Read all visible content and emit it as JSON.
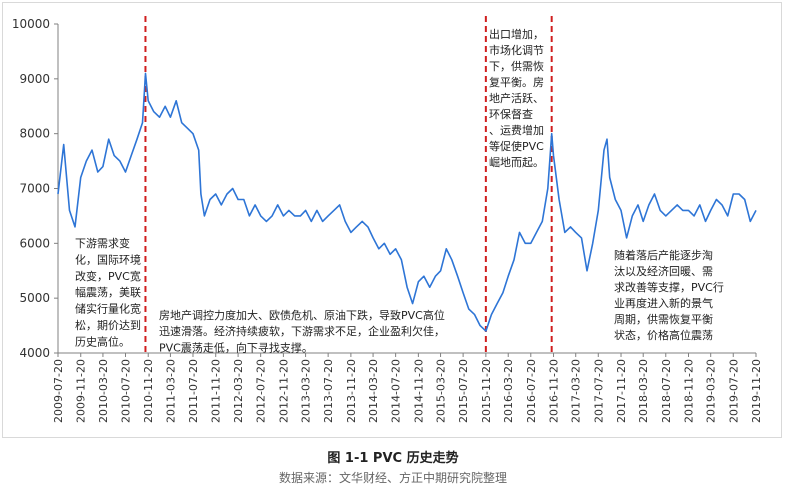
{
  "figure": {
    "caption": "图 1-1 PVC 历史走势",
    "source": "数据来源：文华财经、方正中期研究院整理"
  },
  "chart_data": {
    "type": "line",
    "title": "",
    "xlabel": "",
    "ylabel": "",
    "ylim": [
      4000,
      10000
    ],
    "yticks": [
      4000,
      5000,
      6000,
      7000,
      8000,
      9000,
      10000
    ],
    "grid": false,
    "legend": "none",
    "line_color": "#2e75d6",
    "marker_color": "#d01f1f",
    "x_tick_labels": [
      "2009-07-20",
      "2009-11-20",
      "2010-03-20",
      "2010-07-20",
      "2010-11-20",
      "2011-03-20",
      "2011-07-20",
      "2011-11-20",
      "2012-03-20",
      "2012-07-20",
      "2012-11-20",
      "2013-03-20",
      "2013-07-20",
      "2013-11-20",
      "2014-03-20",
      "2014-07-20",
      "2014-11-20",
      "2015-03-20",
      "2015-07-20",
      "2015-11-20",
      "2016-03-20",
      "2016-07-20",
      "2016-11-20",
      "2017-03-20",
      "2017-07-20",
      "2017-11-20",
      "2018-03-20",
      "2018-07-20",
      "2018-11-20",
      "2019-03-20",
      "2019-07-20",
      "2019-11-20"
    ],
    "series": [
      {
        "x": [
          "2009-07-20",
          "2009-08-20",
          "2009-09-20",
          "2009-10-20",
          "2009-11-20",
          "2009-12-20",
          "2010-01-20",
          "2010-02-20",
          "2010-03-20",
          "2010-04-20",
          "2010-05-20",
          "2010-06-20",
          "2010-07-20",
          "2010-08-20",
          "2010-09-20",
          "2010-10-20",
          "2010-11-05",
          "2010-11-20",
          "2010-12-20",
          "2011-01-20",
          "2011-02-20",
          "2011-03-20",
          "2011-04-20",
          "2011-05-20",
          "2011-06-20",
          "2011-07-20",
          "2011-08-20",
          "2011-09-01",
          "2011-09-20",
          "2011-10-20",
          "2011-11-20",
          "2011-12-20",
          "2012-01-20",
          "2012-02-20",
          "2012-03-20",
          "2012-04-20",
          "2012-05-20",
          "2012-06-20",
          "2012-07-20",
          "2012-08-20",
          "2012-09-20",
          "2012-10-20",
          "2012-11-20",
          "2012-12-20",
          "2013-01-20",
          "2013-02-20",
          "2013-03-20",
          "2013-04-20",
          "2013-05-20",
          "2013-06-20",
          "2013-07-20",
          "2013-08-20",
          "2013-09-20",
          "2013-10-20",
          "2013-11-20",
          "2013-12-20",
          "2014-01-20",
          "2014-02-20",
          "2014-03-20",
          "2014-04-20",
          "2014-05-20",
          "2014-06-20",
          "2014-07-20",
          "2014-08-20",
          "2014-09-20",
          "2014-10-20",
          "2014-11-20",
          "2014-12-20",
          "2015-01-20",
          "2015-02-20",
          "2015-03-20",
          "2015-04-20",
          "2015-05-20",
          "2015-06-20",
          "2015-07-20",
          "2015-08-20",
          "2015-09-20",
          "2015-10-20",
          "2015-11-20",
          "2015-12-20",
          "2016-01-20",
          "2016-02-20",
          "2016-03-20",
          "2016-04-20",
          "2016-05-20",
          "2016-06-20",
          "2016-07-20",
          "2016-08-20",
          "2016-09-20",
          "2016-10-20",
          "2016-11-10",
          "2016-11-20",
          "2016-12-20",
          "2017-01-20",
          "2017-02-20",
          "2017-03-20",
          "2017-04-20",
          "2017-05-20",
          "2017-06-20",
          "2017-07-20",
          "2017-08-20",
          "2017-09-05",
          "2017-09-20",
          "2017-10-20",
          "2017-11-20",
          "2017-12-20",
          "2018-01-20",
          "2018-02-20",
          "2018-03-20",
          "2018-04-20",
          "2018-05-20",
          "2018-06-20",
          "2018-07-20",
          "2018-08-20",
          "2018-09-20",
          "2018-10-20",
          "2018-11-20",
          "2018-12-20",
          "2019-01-20",
          "2019-02-20",
          "2019-03-20",
          "2019-04-20",
          "2019-05-20",
          "2019-06-20",
          "2019-07-20",
          "2019-08-20",
          "2019-09-20",
          "2019-10-20",
          "2019-11-20"
        ],
        "values": [
          6900,
          7800,
          6600,
          6300,
          7200,
          7500,
          7700,
          7300,
          7400,
          7900,
          7600,
          7500,
          7300,
          7600,
          7900,
          8200,
          9100,
          8600,
          8400,
          8300,
          8500,
          8300,
          8600,
          8200,
          8100,
          8000,
          7700,
          6900,
          6500,
          6800,
          6900,
          6700,
          6900,
          7000,
          6800,
          6800,
          6500,
          6700,
          6500,
          6400,
          6500,
          6700,
          6500,
          6600,
          6500,
          6500,
          6600,
          6400,
          6600,
          6400,
          6500,
          6600,
          6700,
          6400,
          6200,
          6300,
          6400,
          6300,
          6100,
          5900,
          6000,
          5800,
          5900,
          5700,
          5200,
          4900,
          5300,
          5400,
          5200,
          5400,
          5500,
          5900,
          5700,
          5400,
          5100,
          4800,
          4700,
          4500,
          4400,
          4700,
          4900,
          5100,
          5400,
          5700,
          6200,
          6000,
          6000,
          6200,
          6400,
          7000,
          8000,
          7600,
          6800,
          6200,
          6300,
          6200,
          6100,
          5500,
          6000,
          6600,
          7700,
          7900,
          7200,
          6800,
          6600,
          6100,
          6500,
          6700,
          6400,
          6700,
          6900,
          6600,
          6500,
          6600,
          6700,
          6600,
          6600,
          6500,
          6700,
          6400,
          6600,
          6800,
          6700,
          6500,
          6900,
          6900,
          6800,
          6400,
          6600
        ]
      }
    ],
    "events": [
      "2010-11-05",
      "2015-11-20",
      "2016-11-10"
    ],
    "annotations": [
      {
        "name": "annotation-2009",
        "lines": [
          "下游需求变",
          "化，国际环境",
          "改变，PVC宽",
          "幅震荡，美联",
          "储实行量化宽",
          "松，期价达到",
          "历史高位。"
        ]
      },
      {
        "name": "annotation-2011",
        "lines": [
          "房地产调控力度加大、欧债危机、原油下跌，导致PVC高位",
          "迅速滑落。经济持续疲软，下游需求不足，企业盈利欠佳，",
          "PVC震荡走低，向下寻找支撑。"
        ]
      },
      {
        "name": "annotation-2016",
        "lines": [
          "出口增加，",
          "市场化调节",
          "下，供需恢",
          "复平衡。房",
          "地产活跃、",
          "环保督查",
          "、运费增加",
          "等促使PVC",
          "崛地而起。"
        ]
      },
      {
        "name": "annotation-2017",
        "lines": [
          "随着落后产能逐步淘",
          "汰以及经济回暖、需",
          "求改善等支撑，PVC行",
          "业再度进入新的景气",
          "周期，供需恢复平衡",
          "状态，价格高位震荡"
        ]
      }
    ]
  }
}
